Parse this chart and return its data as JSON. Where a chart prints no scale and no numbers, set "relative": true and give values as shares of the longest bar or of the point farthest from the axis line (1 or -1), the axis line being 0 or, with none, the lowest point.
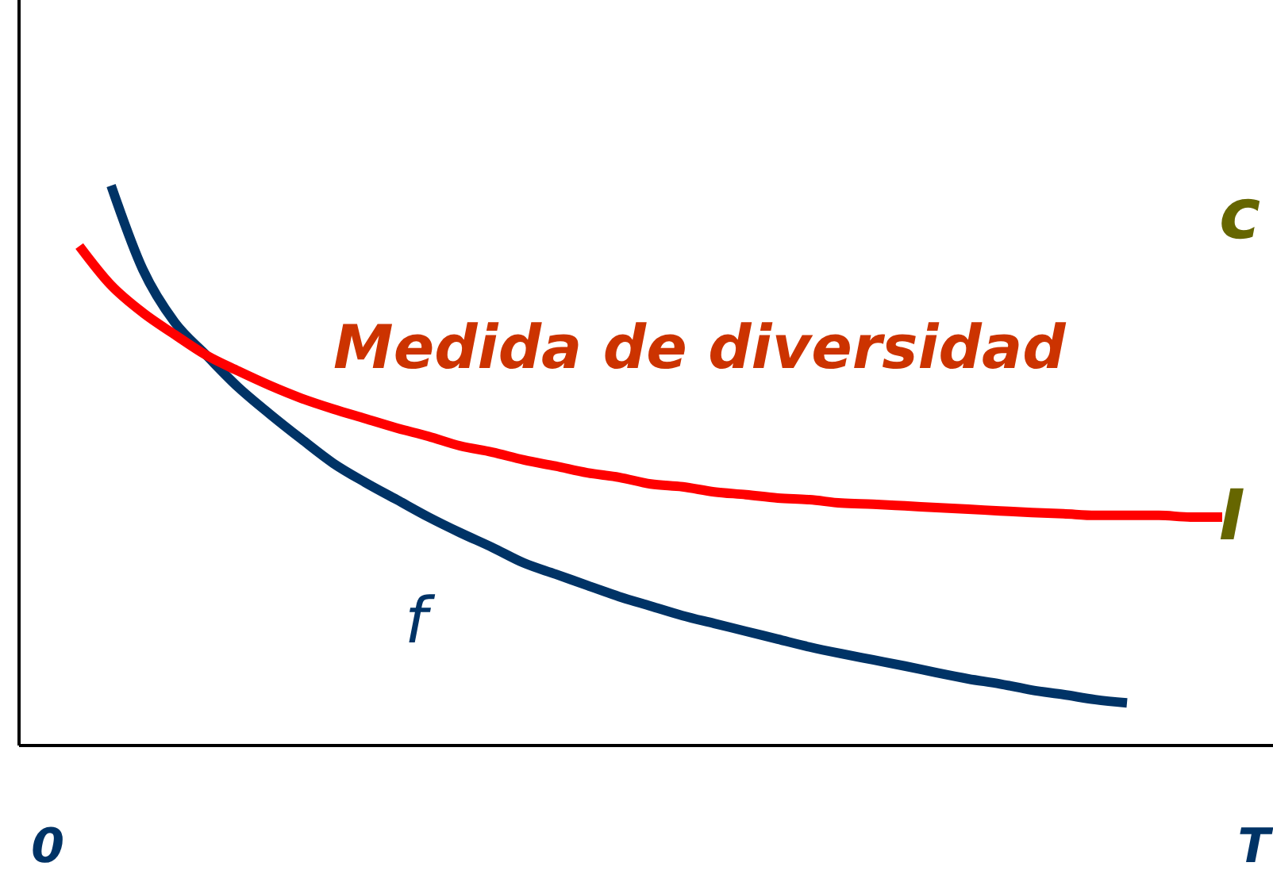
{
  "chart_data": {
    "type": "line",
    "relative": true,
    "tick_labels": "x",
    "legend": false,
    "marker": "none",
    "line_style": "solid",
    "categories": [
      "0",
      null,
      null,
      null,
      null,
      null,
      null,
      null,
      null,
      null,
      null,
      null,
      null,
      null,
      null,
      null,
      null,
      null,
      null,
      null,
      null,
      null,
      null,
      null,
      null,
      null,
      null,
      null,
      null,
      null,
      null,
      null,
      null,
      null,
      null,
      null,
      null,
      null,
      "T"
    ],
    "series": [
      {
        "name": "f",
        "color": "#003366",
        "values": [
          null,
          null,
          1.0,
          0.85,
          0.756,
          0.697,
          0.64,
          0.592,
          0.547,
          0.504,
          0.47,
          0.439,
          0.408,
          0.38,
          0.354,
          0.326,
          0.306,
          0.286,
          0.266,
          0.249,
          0.232,
          0.218,
          0.204,
          0.19,
          0.176,
          0.164,
          0.153,
          0.142,
          0.13,
          0.119,
          0.11,
          0.099,
          0.091,
          0.082,
          0.076,
          null,
          null,
          null,
          null
        ]
      },
      {
        "name": "Medida de diversidad",
        "color": "#ff0000",
        "values": [
          null,
          0.892,
          0.822,
          0.773,
          0.734,
          0.697,
          0.669,
          0.643,
          0.62,
          0.601,
          0.584,
          0.567,
          0.552,
          0.535,
          0.524,
          0.51,
          0.499,
          0.487,
          0.479,
          0.467,
          0.462,
          0.453,
          0.448,
          0.442,
          0.439,
          0.433,
          0.431,
          0.428,
          0.425,
          0.422,
          0.419,
          0.416,
          0.414,
          0.411,
          0.411,
          0.411,
          0.408,
          0.408,
          null
        ]
      }
    ],
    "annotations": [
      "c",
      "I"
    ]
  }
}
